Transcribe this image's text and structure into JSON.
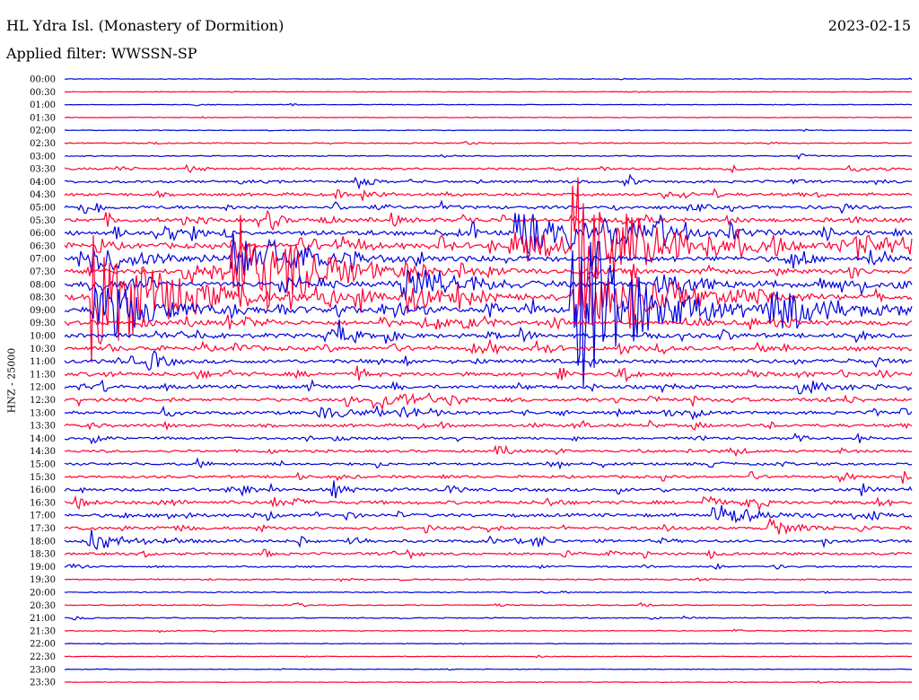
{
  "header": {
    "title": "HL Ydra Isl. (Monastery of Dormition)",
    "date": "2023-02-15",
    "filter": "Applied filter: WWSSN-SP"
  },
  "chart_data": {
    "type": "line",
    "title": "HL Ydra Isl. (Monastery of Dormition)",
    "ylabel": "HNZ - 25000",
    "row_times": [
      "00:00",
      "00:30",
      "01:00",
      "01:30",
      "02:00",
      "02:30",
      "03:00",
      "03:30",
      "04:00",
      "04:30",
      "05:00",
      "05:30",
      "06:00",
      "06:30",
      "07:00",
      "07:30",
      "08:00",
      "08:30",
      "09:00",
      "09:30",
      "10:00",
      "10:30",
      "11:00",
      "11:30",
      "12:00",
      "12:30",
      "13:00",
      "13:30",
      "14:00",
      "14:30",
      "15:00",
      "15:30",
      "16:00",
      "16:30",
      "17:00",
      "17:30",
      "18:00",
      "18:30",
      "19:00",
      "19:30",
      "20:00",
      "20:30",
      "21:00",
      "21:30",
      "22:00",
      "22:30",
      "23:00",
      "23:30"
    ],
    "colors": [
      "#0000dd",
      "#ff0033"
    ],
    "noise_level": [
      0.3,
      0.3,
      0.3,
      0.3,
      0.3,
      0.5,
      0.5,
      1,
      1.2,
      1.4,
      1.6,
      2,
      2.4,
      2.6,
      2.4,
      2.2,
      2.4,
      2.4,
      2.6,
      2.2,
      2,
      2,
      1.8,
      1.8,
      1.6,
      1.6,
      1.5,
      1.4,
      1.2,
      1.2,
      1.2,
      1.2,
      1.5,
      1.6,
      1.5,
      1.4,
      1.4,
      1.2,
      0.8,
      0.6,
      0.5,
      0.5,
      0.5,
      0.4,
      0.3,
      0.3,
      0.3,
      0.3
    ],
    "events": [
      {
        "row": 14,
        "minute": 1,
        "amp": 22,
        "dur": 1.4
      },
      {
        "row": 17,
        "minute": 1,
        "amp": 105,
        "dur": 2
      },
      {
        "row": 18,
        "minute": 1,
        "amp": 35,
        "dur": 2
      },
      {
        "row": 14,
        "minute": 6,
        "amp": 30,
        "dur": 2
      },
      {
        "row": 15,
        "minute": 6,
        "amp": 70,
        "dur": 2.4
      },
      {
        "row": 13,
        "minute": 16,
        "amp": 25,
        "dur": 1.6
      },
      {
        "row": 12,
        "minute": 16,
        "amp": 35,
        "dur": 1.5
      },
      {
        "row": 16,
        "minute": 12,
        "amp": 30,
        "dur": 1.6
      },
      {
        "row": 17,
        "minute": 12,
        "amp": 20,
        "dur": 1.5
      },
      {
        "row": 17,
        "minute": 18,
        "amp": 45,
        "dur": 2
      },
      {
        "row": 18,
        "minute": 18,
        "amp": 125,
        "dur": 2
      },
      {
        "row": 13,
        "minute": 18,
        "amp": 90,
        "dur": 2
      },
      {
        "row": 12,
        "minute": 19,
        "amp": 22,
        "dur": 1.6
      },
      {
        "row": 18,
        "minute": 25,
        "amp": 28,
        "dur": 2
      },
      {
        "row": 13,
        "minute": 28,
        "amp": 18,
        "dur": 1.6
      },
      {
        "row": 17,
        "minute": 20,
        "amp": 18,
        "dur": 1.8
      },
      {
        "row": 16,
        "minute": 21,
        "amp": 14,
        "dur": 1.5
      },
      {
        "row": 24,
        "minute": 26,
        "amp": 10,
        "dur": 1
      },
      {
        "row": 26,
        "minute": 9,
        "amp": 10,
        "dur": 1
      },
      {
        "row": 27,
        "minute": 38,
        "amp": 12,
        "dur": 1.2
      },
      {
        "row": 25,
        "minute": 11,
        "amp": 14,
        "dur": 1.2
      },
      {
        "row": 13,
        "minute": 43,
        "amp": 14,
        "dur": 1.5
      },
      {
        "row": 16,
        "minute": 47,
        "amp": 25,
        "dur": 1.6
      },
      {
        "row": 17,
        "minute": 47,
        "amp": 22,
        "dur": 1.5
      },
      {
        "row": 12,
        "minute": 51,
        "amp": 28,
        "dur": 1.5
      },
      {
        "row": 11,
        "minute": 56,
        "amp": 45,
        "dur": 2
      },
      {
        "row": 10,
        "minute": 56,
        "amp": 40,
        "dur": 2
      },
      {
        "row": 9,
        "minute": 56,
        "amp": 60,
        "dur": 2
      },
      {
        "row": 8,
        "minute": 56,
        "amp": 55,
        "dur": 2
      },
      {
        "row": 17,
        "minute": 55,
        "amp": 65,
        "dur": 2.2
      },
      {
        "row": 18,
        "minute": 55,
        "amp": 90,
        "dur": 2.2
      },
      {
        "row": 16,
        "minute": 55,
        "amp": 45,
        "dur": 2
      },
      {
        "row": 14,
        "minute": 58,
        "amp": 25,
        "dur": 1.6
      },
      {
        "row": 15,
        "minute": 58,
        "amp": 30,
        "dur": 1.6
      },
      {
        "row": 14,
        "minute": 55,
        "amp": 35,
        "dur": 1.8
      },
      {
        "row": 16,
        "minute": 58,
        "amp": 35,
        "dur": 1.8
      },
      {
        "row": 17,
        "minute": 58,
        "amp": 35,
        "dur": 1.8
      },
      {
        "row": 9,
        "minute": 59,
        "amp": 12,
        "dur": 1.2
      },
      {
        "row": 10,
        "minute": 59,
        "amp": 12,
        "dur": 1.2
      },
      {
        "row": 11,
        "minute": 59,
        "amp": 10,
        "dur": 1.2
      },
      {
        "row": 12,
        "minute": 59,
        "amp": 15,
        "dur": 1.2
      },
      {
        "row": 32,
        "minute": 59,
        "amp": 10,
        "dur": 1.2
      },
      {
        "row": 33,
        "minute": 43,
        "amp": 12,
        "dur": 1.2
      },
      {
        "row": 34,
        "minute": 23,
        "amp": 16,
        "dur": 1.2
      },
      {
        "row": 35,
        "minute": 25,
        "amp": 10,
        "dur": 1
      },
      {
        "row": 36,
        "minute": 1,
        "amp": 10,
        "dur": 1.4
      },
      {
        "row": 39,
        "minute": 49,
        "amp": 8,
        "dur": 1
      },
      {
        "row": 41,
        "minute": 58,
        "amp": 7,
        "dur": 1
      },
      {
        "row": 46,
        "minute": 38,
        "amp": 6,
        "dur": 1
      }
    ]
  }
}
